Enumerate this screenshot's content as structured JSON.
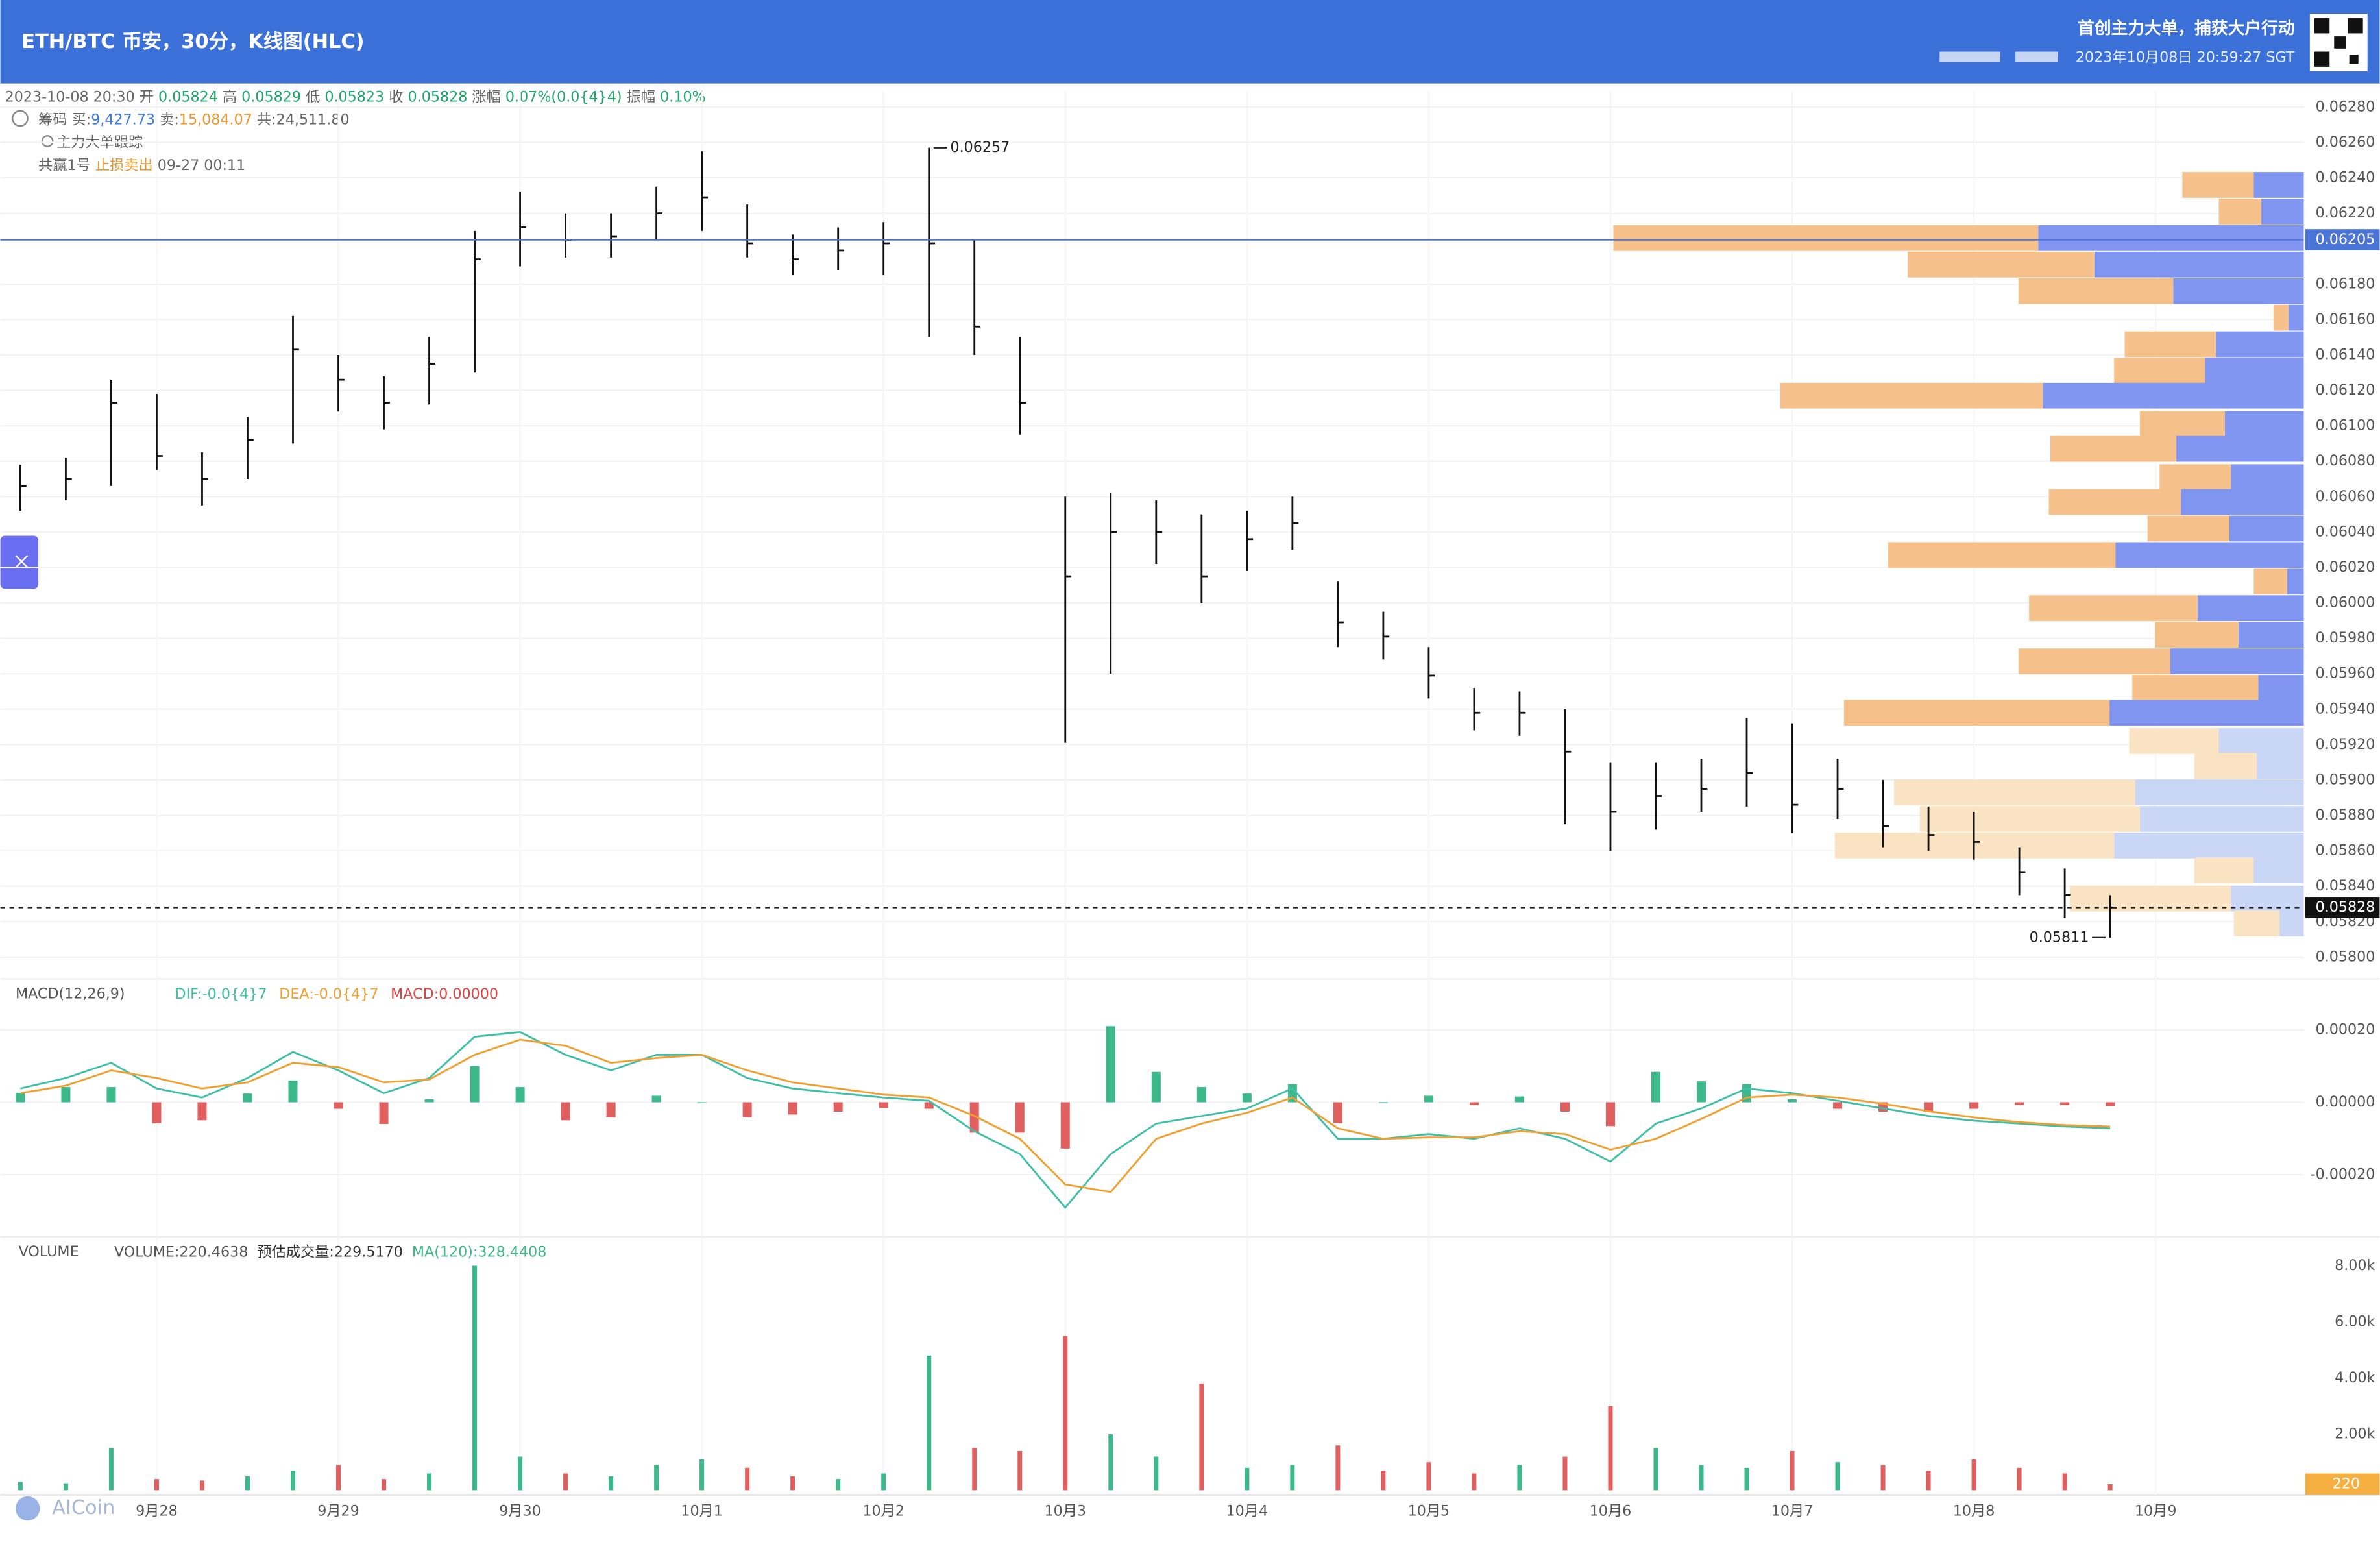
{
  "header": {
    "title": "ETH/BTC 币安，30分，K线图(HLC)",
    "slogan": "首创主力大单，捕获大户行动",
    "timestamp": "2023年10月08日 20:59:27 SGT"
  },
  "ohlc_line": {
    "time": "2023-10-08 20:30",
    "open_label": "开",
    "open": "0.05824",
    "high_label": "高",
    "high": "0.05829",
    "low_label": "低",
    "low": "0.05823",
    "close_label": "收",
    "close": "0.05828",
    "change_label": "涨幅",
    "change": "0.07%(0.0{4}4)",
    "amplitude_label": "振幅",
    "amplitude": "0.10%"
  },
  "chips": {
    "label": "筹码",
    "buy_label": "买:",
    "buy": "9,427.73",
    "sell_label": "卖:",
    "sell": "15,084.07",
    "total": "共:24,511.80"
  },
  "tracker": {
    "title": "主力大单跟踪",
    "account": "共赢1号",
    "action": "止损卖出",
    "time": "09-27 00:11"
  },
  "watermark": "AICoin",
  "chart_data": [
    {
      "type": "hlc",
      "x_labels": [
        "9月28",
        "9月29",
        "9月30",
        "10月1",
        "10月2",
        "10月3",
        "10月4",
        "10月5",
        "10月6",
        "10月7",
        "10月8",
        "10月9"
      ],
      "color": "#111111",
      "high": [
        0.06078,
        0.06082,
        0.06126,
        0.06118,
        0.06085,
        0.06105,
        0.06162,
        0.0614,
        0.06128,
        0.0615,
        0.0621,
        0.06232,
        0.0622,
        0.0622,
        0.06235,
        0.06255,
        0.06225,
        0.06208,
        0.06212,
        0.06215,
        0.06257,
        0.06205,
        0.0615,
        0.0606,
        0.06062,
        0.06058,
        0.0605,
        0.06052,
        0.0606,
        0.06012,
        0.05995,
        0.05975,
        0.05952,
        0.0595,
        0.0594,
        0.0591,
        0.0591,
        0.05912,
        0.05935,
        0.05932,
        0.05912,
        0.059,
        0.05885,
        0.05882,
        0.05862,
        0.0585,
        0.05835
      ],
      "low": [
        0.06052,
        0.06058,
        0.06066,
        0.06075,
        0.06055,
        0.0607,
        0.0609,
        0.06108,
        0.06098,
        0.06112,
        0.0613,
        0.0619,
        0.06195,
        0.06195,
        0.06205,
        0.0621,
        0.06195,
        0.06185,
        0.06188,
        0.06185,
        0.0615,
        0.0614,
        0.06095,
        0.05921,
        0.0596,
        0.06022,
        0.06,
        0.06018,
        0.0603,
        0.05975,
        0.05968,
        0.05946,
        0.05928,
        0.05925,
        0.05875,
        0.0586,
        0.05872,
        0.05882,
        0.05885,
        0.0587,
        0.05878,
        0.05862,
        0.0586,
        0.05855,
        0.05835,
        0.05822,
        0.05811
      ],
      "close": [
        0.06066,
        0.0607,
        0.06113,
        0.06083,
        0.0607,
        0.06092,
        0.06143,
        0.06126,
        0.06113,
        0.06135,
        0.06194,
        0.06212,
        0.06205,
        0.06207,
        0.0622,
        0.06229,
        0.06203,
        0.06194,
        0.06199,
        0.06203,
        0.06203,
        0.06156,
        0.06113,
        0.06015,
        0.0604,
        0.0604,
        0.06015,
        0.06036,
        0.06045,
        0.05989,
        0.05981,
        0.05959,
        0.05938,
        0.05938,
        0.05916,
        0.05882,
        0.05891,
        0.05895,
        0.05904,
        0.05886,
        0.05895,
        0.05874,
        0.05869,
        0.05865,
        0.05848,
        0.05835,
        0.05828
      ],
      "ylim": [
        0.05792,
        0.06289
      ],
      "yticks": [
        {
          "value": 0.0628,
          "label": "0.06280"
        },
        {
          "value": 0.0626,
          "label": "0.06260"
        },
        {
          "value": 0.0624,
          "label": "0.06240"
        },
        {
          "value": 0.0622,
          "label": "0.06220"
        },
        {
          "value": 0.0618,
          "label": "0.06180"
        },
        {
          "value": 0.0616,
          "label": "0.06160"
        },
        {
          "value": 0.0614,
          "label": "0.06140"
        },
        {
          "value": 0.0612,
          "label": "0.06120"
        },
        {
          "value": 0.061,
          "label": "0.06100"
        },
        {
          "value": 0.0608,
          "label": "0.06080"
        },
        {
          "value": 0.0606,
          "label": "0.06060"
        },
        {
          "value": 0.0604,
          "label": "0.06040"
        },
        {
          "value": 0.0602,
          "label": "0.06020"
        },
        {
          "value": 0.06,
          "label": "0.06000"
        },
        {
          "value": 0.0598,
          "label": "0.05980"
        },
        {
          "value": 0.0596,
          "label": "0.05960"
        },
        {
          "value": 0.0594,
          "label": "0.05940"
        },
        {
          "value": 0.0592,
          "label": "0.05920"
        },
        {
          "value": 0.059,
          "label": "0.05900"
        },
        {
          "value": 0.0588,
          "label": "0.05880"
        },
        {
          "value": 0.0586,
          "label": "0.05860"
        },
        {
          "value": 0.0584,
          "label": "0.05840"
        },
        {
          "value": 0.0582,
          "label": "0.05820"
        },
        {
          "value": 0.058,
          "label": "0.05800"
        }
      ],
      "max_label": 0.06257,
      "min_label": 0.05811,
      "last_price": 0.05828,
      "tracker_line": 0.06205,
      "tracker_color": "#4a74d6",
      "grid": true,
      "profile": [
        {
          "sell_color": "#f5c089",
          "buy_color": "#7f95ef",
          "rows": [
            {
              "price": 0.06236,
              "sell": 47,
              "buy": 33
            },
            {
              "price": 0.06221,
              "sell": 28,
              "buy": 28
            },
            {
              "price": 0.06206,
              "sell": 280,
              "buy": 175
            },
            {
              "price": 0.06191,
              "sell": 123,
              "buy": 138
            },
            {
              "price": 0.06176,
              "sell": 102,
              "buy": 86
            },
            {
              "price": 0.06161,
              "sell": 10,
              "buy": 10
            },
            {
              "price": 0.06146,
              "sell": 60,
              "buy": 58
            },
            {
              "price": 0.06131,
              "sell": 60,
              "buy": 65
            },
            {
              "price": 0.06117,
              "sell": 173,
              "buy": 172
            },
            {
              "price": 0.06101,
              "sell": 56,
              "buy": 52
            },
            {
              "price": 0.06087,
              "sell": 83,
              "buy": 84
            },
            {
              "price": 0.06071,
              "sell": 47,
              "buy": 48
            },
            {
              "price": 0.06057,
              "sell": 87,
              "buy": 81
            },
            {
              "price": 0.06042,
              "sell": 54,
              "buy": 49
            },
            {
              "price": 0.06027,
              "sell": 150,
              "buy": 124
            },
            {
              "price": 0.06012,
              "sell": 22,
              "buy": 11
            },
            {
              "price": 0.05997,
              "sell": 111,
              "buy": 70
            },
            {
              "price": 0.05982,
              "sell": 55,
              "buy": 43
            },
            {
              "price": 0.05967,
              "sell": 100,
              "buy": 88
            },
            {
              "price": 0.05952,
              "sell": 83,
              "buy": 30
            },
            {
              "price": 0.05938,
              "sell": 175,
              "buy": 128
            }
          ]
        },
        {
          "sell_color": "#fae3c3",
          "buy_color": "#c9d6f5",
          "rows": [
            {
              "price": 0.05922,
              "sell": 59,
              "buy": 56
            },
            {
              "price": 0.05908,
              "sell": 41,
              "buy": 31
            },
            {
              "price": 0.05893,
              "sell": 159,
              "buy": 111
            },
            {
              "price": 0.05878,
              "sell": 145,
              "buy": 108
            },
            {
              "price": 0.05863,
              "sell": 184,
              "buy": 125
            },
            {
              "price": 0.05849,
              "sell": 39,
              "buy": 33
            },
            {
              "price": 0.05833,
              "sell": 106,
              "buy": 48
            },
            {
              "price": 0.05819,
              "sell": 30,
              "buy": 16
            }
          ]
        }
      ]
    },
    {
      "type": "macd",
      "title": "MACD(12,26,9)",
      "macd_label": "MACD:0.00000",
      "macd_color": "#d44",
      "up_color": "#3cb88a",
      "down_color": "#e06060",
      "series": [
        {
          "name": "DIF:-0.0{4}7",
          "color": "#3fbfa8",
          "values": [
            3.8e-05,
            6.7e-05,
            0.000109,
            3.8e-05,
            1.3e-05,
            6.7e-05,
            0.000139,
            8.8e-05,
            2.5e-05,
            6.7e-05,
            0.000181,
            0.000194,
            0.000131,
            8.8e-05,
            0.000131,
            0.000131,
            6.7e-05,
            3.8e-05,
            2.5e-05,
            1.3e-05,
            4e-06,
            -8e-05,
            -0.000143,
            -0.000291,
            -0.000143,
            -5.9e-05,
            -3.8e-05,
            -1.7e-05,
            3.8e-05,
            -0.000101,
            -0.000101,
            -8.8e-05,
            -0.000101,
            -7.2e-05,
            -0.000101,
            -0.000164,
            -5.9e-05,
            -1.7e-05,
            3.8e-05,
            2.5e-05,
            4e-06,
            -1.7e-05,
            -3.8e-05,
            -5.1e-05,
            -5.9e-05,
            -6.7e-05,
            -7.2e-05
          ]
        },
        {
          "name": "DEA:-0.0{4}7",
          "color": "#f0a030",
          "values": [
            2.5e-05,
            4.6e-05,
            8.8e-05,
            6.7e-05,
            3.8e-05,
            5.5e-05,
            0.000109,
            9.7e-05,
            5.5e-05,
            6.3e-05,
            0.000131,
            0.000173,
            0.000156,
            0.000109,
            0.000122,
            0.000131,
            8.8e-05,
            5.5e-05,
            3.8e-05,
            2.1e-05,
            1.3e-05,
            -3.8e-05,
            -0.000101,
            -0.000227,
            -0.000248,
            -0.000101,
            -5.9e-05,
            -2.9e-05,
            1.3e-05,
            -7.2e-05,
            -0.000101,
            -9.7e-05,
            -9.7e-05,
            -8e-05,
            -8.8e-05,
            -0.000131,
            -0.000101,
            -4.6e-05,
            1.3e-05,
            2.1e-05,
            1.3e-05,
            -4e-06,
            -2.5e-05,
            -4.2e-05,
            -5.5e-05,
            -6.3e-05,
            -6.7e-05
          ]
        }
      ],
      "histogram": [
        2.6e-05,
        4.2e-05,
        4.2e-05,
        -5.8e-05,
        -5e-05,
        2.4e-05,
        6e-05,
        -1.8e-05,
        -6e-05,
        8e-06,
        0.0001,
        4.2e-05,
        -5e-05,
        -4.2e-05,
        1.8e-05,
        0,
        -4.2e-05,
        -3.4e-05,
        -2.6e-05,
        -1.6e-05,
        -1.8e-05,
        -8.4e-05,
        -8.4e-05,
        -0.000128,
        0.00021,
        8.4e-05,
        4.2e-05,
        2.4e-05,
        5e-05,
        -5.8e-05,
        0,
        1.8e-05,
        -8e-06,
        1.6e-05,
        -2.6e-05,
        -6.6e-05,
        8.4e-05,
        5.8e-05,
        5e-05,
        8e-06,
        -1.8e-05,
        -2.6e-05,
        -2.6e-05,
        -1.8e-05,
        -8e-06,
        -8e-06,
        -1e-05
      ],
      "ylim": [
        -0.00033,
        0.00032
      ],
      "yticks": [
        {
          "value": 0.0002,
          "label": "0.00020"
        },
        {
          "value": 0,
          "label": "0.00000"
        },
        {
          "value": -0.0002,
          "label": "-0.00020"
        }
      ]
    },
    {
      "type": "volume",
      "title": "VOLUME",
      "legend": [
        {
          "name": "VOLUME:220.4638",
          "color": "#555555"
        },
        {
          "name": "预估成交量:229.5170",
          "color": "#333333"
        },
        {
          "name": "MA(120):328.4408",
          "color": "#3cb88a"
        }
      ],
      "up_color": "#3cb88a",
      "down_color": "#e06060",
      "last_tag_color": "#f5b041",
      "values": [
        300,
        250,
        1500,
        400,
        350,
        500,
        700,
        900,
        400,
        600,
        8000,
        1200,
        600,
        500,
        900,
        1100,
        800,
        500,
        400,
        600,
        4800,
        1500,
        1400,
        5500,
        2000,
        1200,
        3800,
        800,
        900,
        1600,
        700,
        1000,
        600,
        900,
        1200,
        3000,
        1500,
        900,
        800,
        1400,
        1000,
        900,
        700,
        1100,
        800,
        600,
        220
      ],
      "ylim": [
        0,
        8650
      ],
      "yticks": [
        {
          "value": 2000,
          "label": "2.00k"
        },
        {
          "value": 4000,
          "label": "4.00k"
        },
        {
          "value": 6000,
          "label": "6.00k"
        },
        {
          "value": 8000,
          "label": "8.00k"
        }
      ]
    }
  ]
}
